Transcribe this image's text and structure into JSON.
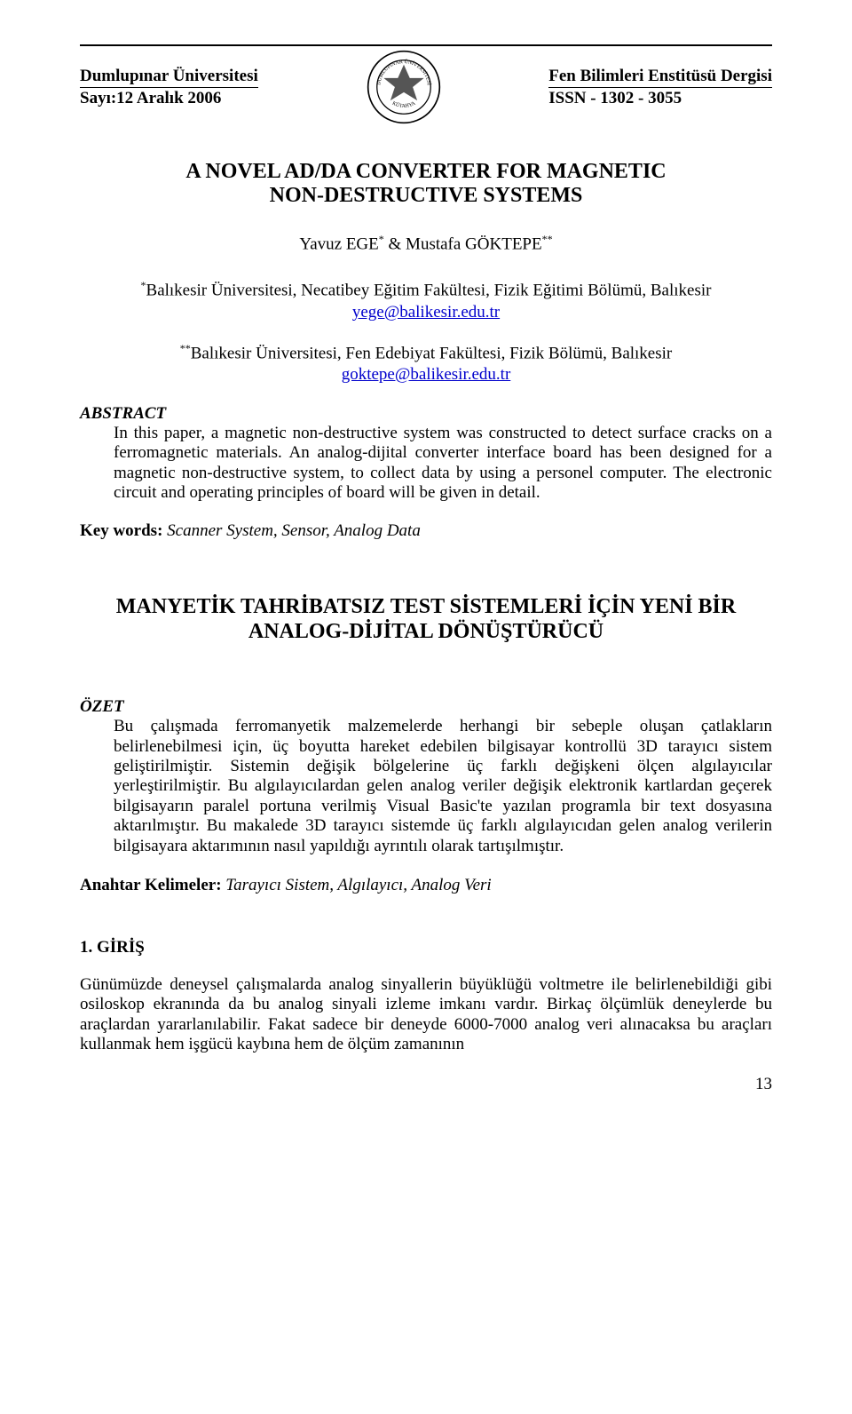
{
  "header": {
    "left_line1": "Dumlupınar Üniversitesi",
    "left_line2": "Sayı:12  Aralık 2006",
    "right_line1": "Fen Bilimleri Enstitüsü Dergisi",
    "right_line2": "ISSN - 1302 - 3055",
    "logo_text_top": "DUMLUPINAR",
    "logo_text_bottom": "KÜTAHYA"
  },
  "title_en_line1": "A NOVEL AD/DA CONVERTER FOR MAGNETIC",
  "title_en_line2": "NON-DESTRUCTIVE SYSTEMS",
  "authors_html": "Yavuz EGE<sup>*</sup> & Mustafa GÖKTEPE<sup>**</sup>",
  "affil1_html": "<sup>*</sup>Balıkesir Üniversitesi, Necatibey Eğitim Fakültesi, Fizik Eğitimi Bölümü, Balıkesir",
  "email1": "yege@balikesir.edu.tr",
  "affil2_html": "<sup>**</sup>Balıkesir Üniversitesi, Fen Edebiyat Fakültesi, Fizik Bölümü, Balıkesir",
  "email2": "goktepe@balikesir.edu.tr",
  "abstract_label": "ABSTRACT",
  "abstract_body": "In this paper, a magnetic non-destructive system was constructed to detect surface cracks on a ferromagnetic materials. An analog-dijital converter interface board has been designed for a magnetic non-destructive system, to collect data by using a personel computer. The electronic circuit and operating principles of board will be given in detail.",
  "keywords_label": "Key words:",
  "keywords_value": " Scanner System, Sensor, Analog Data",
  "title_tr": "MANYETİK TAHRİBATSIZ TEST SİSTEMLERİ İÇİN YENİ BİR ANALOG-DİJİTAL DÖNÜŞTÜRÜCÜ",
  "ozet_label": "ÖZET",
  "ozet_body": "Bu çalışmada ferromanyetik malzemelerde herhangi bir sebeple oluşan çatlakların belirlenebilmesi için, üç boyutta hareket edebilen bilgisayar kontrollü 3D tarayıcı sistem geliştirilmiştir. Sistemin değişik bölgelerine üç farklı değişkeni ölçen algılayıcılar yerleştirilmiştir. Bu algılayıcılardan gelen analog veriler değişik elektronik kartlardan geçerek bilgisayarın paralel portuna verilmiş Visual Basic'te yazılan programla bir text dosyasına aktarılmıştır. Bu makalede 3D tarayıcı sistemde üç farklı algılayıcıdan gelen analog verilerin bilgisayara aktarımının nasıl yapıldığı ayrıntılı olarak tartışılmıştır.",
  "anahtar_label": "Anahtar Kelimeler:",
  "anahtar_value": "  Tarayıcı Sistem, Algılayıcı, Analog Veri",
  "giris_heading": "1. GİRİŞ",
  "giris_body": "Günümüzde deneysel çalışmalarda analog sinyallerin büyüklüğü voltmetre ile belirlenebildiği gibi osiloskop ekranında da bu analog sinyali izleme imkanı vardır. Birkaç ölçümlük deneylerde bu araçlardan yararlanılabilir. Fakat sadece bir deneyde 6000-7000 analog veri alınacaksa bu araçları kullanmak hem işgücü kaybına hem de ölçüm zamanının",
  "page_number": "13",
  "colors": {
    "text": "#000000",
    "link": "#0000cc",
    "background": "#ffffff"
  }
}
